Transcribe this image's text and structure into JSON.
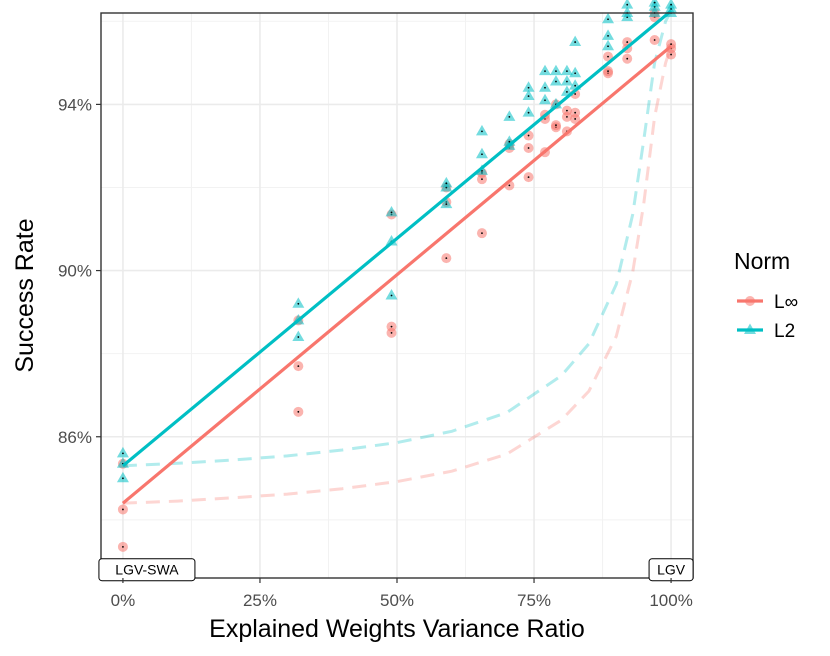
{
  "chart_data": {
    "type": "scatter",
    "title": "",
    "xlabel": "Explained Weights Variance Ratio",
    "ylabel": "Success Rate",
    "xlim": [
      -0.04,
      1.04
    ],
    "ylim": [
      82.6,
      96.2
    ],
    "x_ticks": [
      0,
      0.25,
      0.5,
      0.75,
      1.0
    ],
    "x_tick_labels": [
      "0%",
      "25%",
      "50%",
      "75%",
      "100%"
    ],
    "y_ticks": [
      86,
      90,
      94
    ],
    "y_tick_labels": [
      "86%",
      "90%",
      "94%"
    ],
    "grid": true,
    "legend": {
      "title": "Norm",
      "position": "right"
    },
    "annotations": [
      {
        "text": "LGV-SWA",
        "x": 0.0,
        "y": 82.8
      },
      {
        "text": "LGV",
        "x": 1.0,
        "y": 82.8
      }
    ],
    "series": [
      {
        "name": "L∞",
        "marker": "circle",
        "color": "#F8766D",
        "points": [
          [
            0.0,
            83.35
          ],
          [
            0.0,
            84.25
          ],
          [
            0.0,
            85.35
          ],
          [
            0.32,
            86.6
          ],
          [
            0.32,
            87.7
          ],
          [
            0.32,
            88.8
          ],
          [
            0.49,
            88.5
          ],
          [
            0.49,
            88.65
          ],
          [
            0.49,
            91.35
          ],
          [
            0.59,
            90.3
          ],
          [
            0.59,
            91.65
          ],
          [
            0.59,
            92.0
          ],
          [
            0.655,
            90.9
          ],
          [
            0.655,
            92.2
          ],
          [
            0.655,
            92.35
          ],
          [
            0.705,
            92.05
          ],
          [
            0.705,
            92.95
          ],
          [
            0.705,
            93.05
          ],
          [
            0.74,
            92.25
          ],
          [
            0.74,
            92.95
          ],
          [
            0.74,
            93.25
          ],
          [
            0.77,
            92.85
          ],
          [
            0.77,
            93.65
          ],
          [
            0.77,
            93.75
          ],
          [
            0.79,
            93.45
          ],
          [
            0.79,
            93.5
          ],
          [
            0.79,
            94.0
          ],
          [
            0.81,
            93.35
          ],
          [
            0.81,
            93.7
          ],
          [
            0.81,
            93.85
          ],
          [
            0.825,
            93.65
          ],
          [
            0.825,
            93.8
          ],
          [
            0.825,
            94.25
          ],
          [
            0.885,
            94.75
          ],
          [
            0.885,
            94.8
          ],
          [
            0.885,
            95.15
          ],
          [
            0.92,
            95.1
          ],
          [
            0.92,
            95.35
          ],
          [
            0.92,
            95.5
          ],
          [
            0.97,
            95.55
          ],
          [
            0.97,
            96.1
          ],
          [
            0.97,
            96.2
          ],
          [
            1.0,
            95.2
          ],
          [
            1.0,
            95.35
          ],
          [
            1.0,
            95.45
          ]
        ],
        "fit_line": {
          "x": [
            0.0,
            1.0
          ],
          "y": [
            84.4,
            95.4
          ]
        },
        "reference_curve": {
          "x": [
            0.0,
            0.1,
            0.2,
            0.3,
            0.4,
            0.5,
            0.6,
            0.7,
            0.8,
            0.85,
            0.9,
            0.93,
            0.95,
            0.97,
            0.99,
            1.0
          ],
          "y": [
            84.4,
            84.45,
            84.53,
            84.62,
            84.75,
            84.92,
            85.17,
            85.58,
            86.4,
            87.1,
            88.42,
            89.96,
            91.6,
            93.7,
            95.0,
            95.4
          ]
        }
      },
      {
        "name": "L2",
        "marker": "triangle",
        "color": "#00BFC4",
        "points": [
          [
            0.0,
            85.0
          ],
          [
            0.0,
            85.35
          ],
          [
            0.0,
            85.6
          ],
          [
            0.32,
            88.4
          ],
          [
            0.32,
            88.8
          ],
          [
            0.32,
            89.2
          ],
          [
            0.49,
            89.4
          ],
          [
            0.49,
            90.7
          ],
          [
            0.49,
            91.4
          ],
          [
            0.59,
            91.6
          ],
          [
            0.59,
            92.0
          ],
          [
            0.59,
            92.1
          ],
          [
            0.655,
            92.4
          ],
          [
            0.655,
            92.8
          ],
          [
            0.655,
            93.35
          ],
          [
            0.705,
            93.0
          ],
          [
            0.705,
            93.1
          ],
          [
            0.705,
            93.7
          ],
          [
            0.74,
            93.8
          ],
          [
            0.74,
            94.2
          ],
          [
            0.74,
            94.4
          ],
          [
            0.77,
            94.1
          ],
          [
            0.77,
            94.4
          ],
          [
            0.77,
            94.8
          ],
          [
            0.79,
            94.0
          ],
          [
            0.79,
            94.55
          ],
          [
            0.79,
            94.8
          ],
          [
            0.81,
            94.3
          ],
          [
            0.81,
            94.55
          ],
          [
            0.81,
            94.8
          ],
          [
            0.825,
            94.45
          ],
          [
            0.825,
            94.75
          ],
          [
            0.825,
            95.5
          ],
          [
            0.885,
            95.4
          ],
          [
            0.885,
            95.65
          ],
          [
            0.885,
            96.05
          ],
          [
            0.92,
            96.1
          ],
          [
            0.92,
            96.2
          ],
          [
            0.92,
            96.4
          ],
          [
            0.97,
            96.2
          ],
          [
            0.97,
            96.35
          ],
          [
            0.97,
            96.45
          ],
          [
            1.0,
            96.2
          ],
          [
            1.0,
            96.3
          ],
          [
            1.0,
            96.4
          ]
        ],
        "fit_line": {
          "x": [
            0.0,
            1.0
          ],
          "y": [
            85.3,
            96.25
          ]
        },
        "reference_curve": {
          "x": [
            0.0,
            0.1,
            0.2,
            0.3,
            0.4,
            0.5,
            0.6,
            0.7,
            0.8,
            0.85,
            0.9,
            0.93,
            0.95,
            0.97,
            0.99,
            1.0
          ],
          "y": [
            85.3,
            85.36,
            85.44,
            85.54,
            85.68,
            85.86,
            86.13,
            86.58,
            87.47,
            88.24,
            89.67,
            91.35,
            93.13,
            95.0,
            96.0,
            96.25
          ]
        }
      }
    ]
  }
}
